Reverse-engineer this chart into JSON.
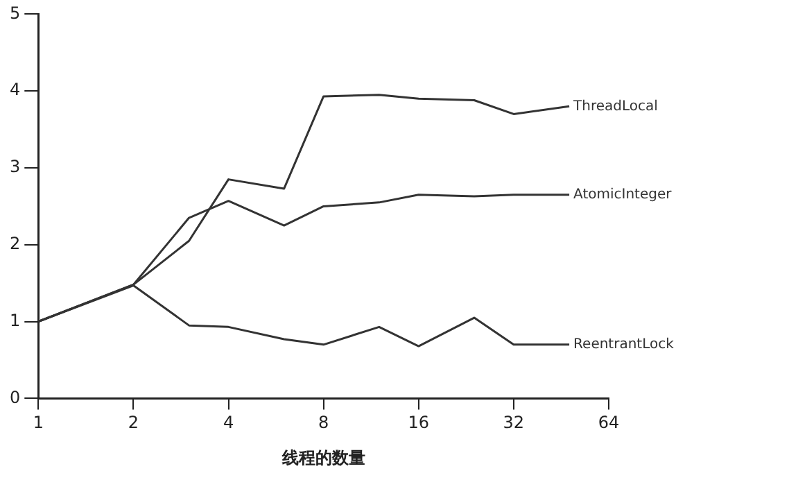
{
  "chart_data": {
    "type": "line",
    "xlabel": "线程的数量",
    "log": "x",
    "xlim": [
      1,
      64
    ],
    "xticks": [
      1,
      2,
      4,
      8,
      16,
      32,
      64
    ],
    "ylim": [
      0,
      5
    ],
    "yticks": [
      0,
      1,
      2,
      3,
      4,
      5
    ],
    "grid": false,
    "legend": false,
    "marker": "none",
    "line_style": "solid",
    "x": [
      1,
      2,
      3,
      4,
      6,
      8,
      12,
      16,
      24,
      32,
      48
    ],
    "series": [
      {
        "name": "ThreadLocal",
        "color": "#333333",
        "values": [
          1.0,
          1.48,
          2.05,
          2.85,
          2.73,
          3.93,
          3.95,
          3.9,
          3.88,
          3.7,
          3.8
        ]
      },
      {
        "name": "AtomicInteger",
        "color": "#333333",
        "values": [
          1.0,
          1.48,
          2.35,
          2.57,
          2.25,
          2.5,
          2.55,
          2.65,
          2.63,
          2.65,
          2.65
        ]
      },
      {
        "name": "ReentrantLock",
        "color": "#333333",
        "values": [
          1.0,
          1.47,
          0.95,
          0.93,
          0.77,
          0.7,
          0.93,
          0.68,
          1.05,
          0.7,
          0.7
        ]
      }
    ]
  }
}
